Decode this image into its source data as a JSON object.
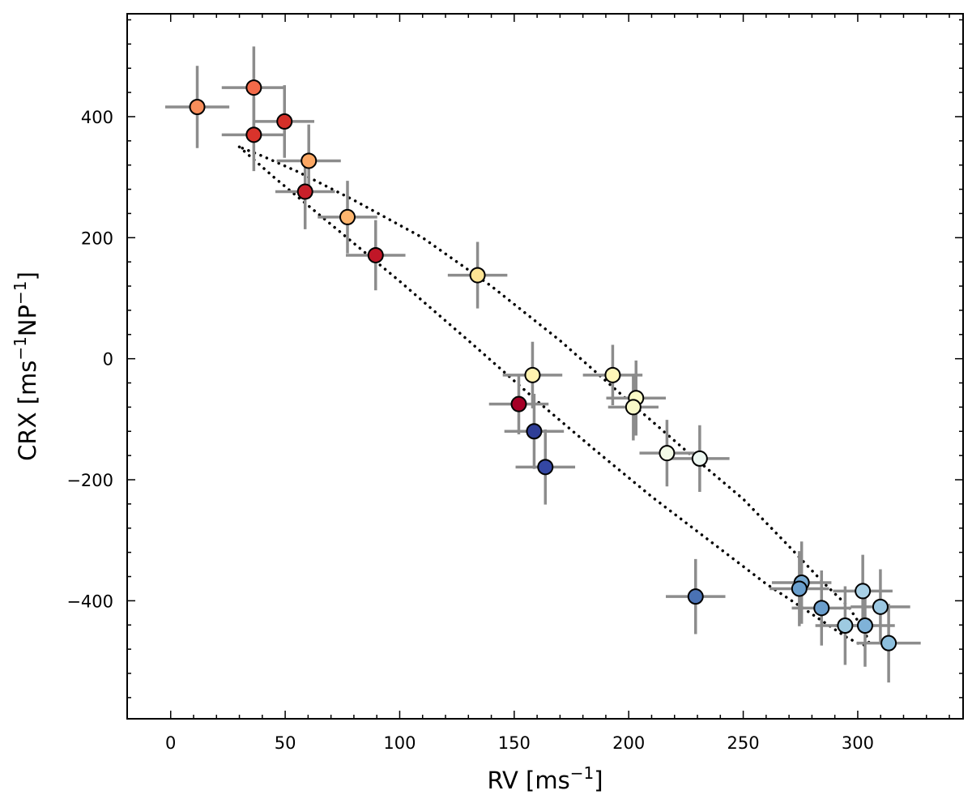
{
  "chart_data": {
    "type": "scatter",
    "title": "",
    "xlabel": {
      "main": "RV [ms",
      "sup": "−1",
      "close": "]"
    },
    "ylabel": {
      "main": "CRX [ms",
      "sup1": "−1",
      "mid": "NP",
      "sup2": "−1",
      "close": "]"
    },
    "xlim": [
      -19,
      346
    ],
    "ylim": [
      -595,
      570
    ],
    "xticks": [
      0,
      50,
      100,
      150,
      200,
      250,
      300
    ],
    "xtick_labels": [
      "0",
      "50",
      "100",
      "150",
      "200",
      "250",
      "300"
    ],
    "yticks": [
      -400,
      -200,
      0,
      200,
      400
    ],
    "ytick_labels": [
      "−400",
      "−200",
      "0",
      "200",
      "400"
    ],
    "grid": false,
    "legend": "none",
    "colors": {
      "errorbar": "#8c8c8c",
      "marker_edge": "#000000",
      "model_curve": "#000000"
    },
    "points": [
      {
        "x": 11.6,
        "y": 416,
        "xerr": 14,
        "yerr": 68,
        "color": "#f88d5a"
      },
      {
        "x": 36.3,
        "y": 448,
        "xerr": 14,
        "yerr": 68,
        "color": "#f26a49"
      },
      {
        "x": 36.3,
        "y": 370,
        "xerr": 14,
        "yerr": 60,
        "color": "#d9332b"
      },
      {
        "x": 49.7,
        "y": 392,
        "xerr": 13,
        "yerr": 60,
        "color": "#d43029"
      },
      {
        "x": 60.3,
        "y": 327,
        "xerr": 14,
        "yerr": 60,
        "color": "#fca763"
      },
      {
        "x": 58.7,
        "y": 276,
        "xerr": 13,
        "yerr": 62,
        "color": "#c8202a"
      },
      {
        "x": 77.2,
        "y": 234,
        "xerr": 13,
        "yerr": 60,
        "color": "#fdb56e"
      },
      {
        "x": 89.5,
        "y": 171,
        "xerr": 13,
        "yerr": 58,
        "color": "#c01627"
      },
      {
        "x": 134.0,
        "y": 138,
        "xerr": 13,
        "yerr": 55,
        "color": "#fee494"
      },
      {
        "x": 158.0,
        "y": -27,
        "xerr": 13,
        "yerr": 55,
        "color": "#fff2b0"
      },
      {
        "x": 152.0,
        "y": -75,
        "xerr": 13,
        "yerr": 50,
        "color": "#a50026"
      },
      {
        "x": 158.7,
        "y": -120,
        "xerr": 13,
        "yerr": 62,
        "color": "#2f3e97"
      },
      {
        "x": 163.6,
        "y": -179,
        "xerr": 13,
        "yerr": 62,
        "color": "#3447a3"
      },
      {
        "x": 193.0,
        "y": -27,
        "xerr": 13,
        "yerr": 50,
        "color": "#fff6b8"
      },
      {
        "x": 203.2,
        "y": -65,
        "xerr": 13,
        "yerr": 62,
        "color": "#fbfbc8"
      },
      {
        "x": 202.0,
        "y": -80,
        "xerr": 11,
        "yerr": 55,
        "color": "#f8f8c8"
      },
      {
        "x": 216.7,
        "y": -156,
        "xerr": 12,
        "yerr": 55,
        "color": "#f2f9e6"
      },
      {
        "x": 231.0,
        "y": -165,
        "xerr": 13,
        "yerr": 55,
        "color": "#eef8f2"
      },
      {
        "x": 229.2,
        "y": -393,
        "xerr": 13,
        "yerr": 62,
        "color": "#4a72b4"
      },
      {
        "x": 275.5,
        "y": -370,
        "xerr": 13,
        "yerr": 68,
        "color": "#76a8d0"
      },
      {
        "x": 274.5,
        "y": -380,
        "xerr": 13,
        "yerr": 62,
        "color": "#6a9fcd"
      },
      {
        "x": 284.2,
        "y": -412,
        "xerr": 13,
        "yerr": 62,
        "color": "#6b9ecc"
      },
      {
        "x": 294.5,
        "y": -441,
        "xerr": 13,
        "yerr": 65,
        "color": "#9ecae1"
      },
      {
        "x": 302.2,
        "y": -384,
        "xerr": 13,
        "yerr": 60,
        "color": "#a8d0e6"
      },
      {
        "x": 303.2,
        "y": -441,
        "xerr": 13,
        "yerr": 68,
        "color": "#7fb2d8"
      },
      {
        "x": 309.9,
        "y": -410,
        "xerr": 13,
        "yerr": 62,
        "color": "#9cc8e2"
      },
      {
        "x": 313.5,
        "y": -470,
        "xerr": 14,
        "yerr": 65,
        "color": "#8dbfdd"
      }
    ],
    "model_curve": {
      "style": "dotted",
      "x": [
        30,
        45,
        70,
        100,
        130,
        160,
        185,
        210,
        235,
        260,
        280,
        295,
        302,
        305,
        303,
        296,
        285,
        270,
        250,
        225,
        200,
        170,
        140,
        110,
        80,
        55,
        40,
        30
      ],
      "y": [
        350,
        300,
        222,
        128,
        30,
        -70,
        -150,
        -228,
        -300,
        -372,
        -422,
        -460,
        -474,
        -470,
        -450,
        -410,
        -370,
        -310,
        -232,
        -152,
        -70,
        30,
        120,
        200,
        262,
        310,
        335,
        350
      ]
    }
  }
}
